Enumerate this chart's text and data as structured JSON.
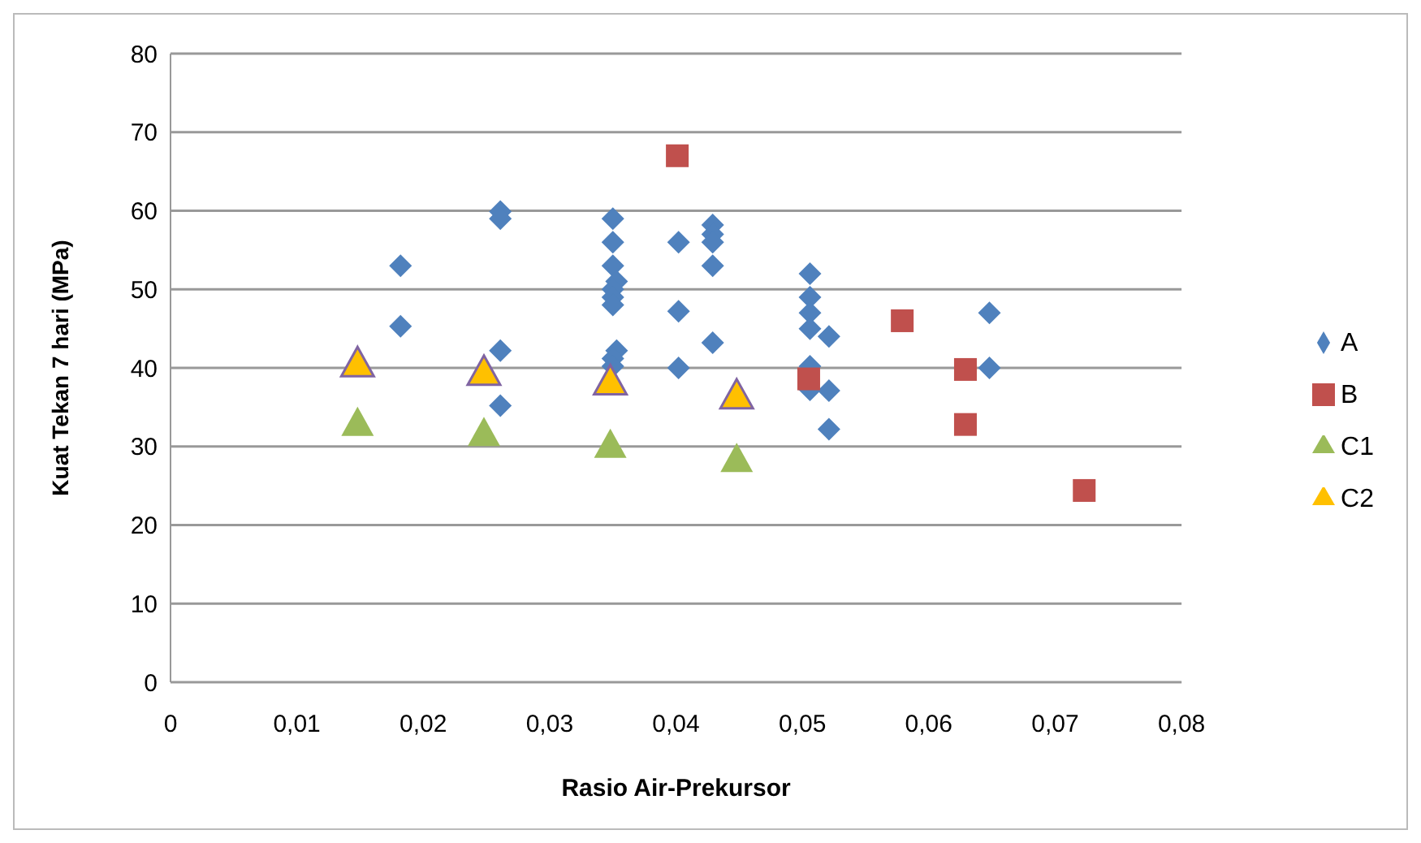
{
  "chart_data": {
    "type": "scatter",
    "xlabel": "Rasio Air-Prekursor",
    "ylabel": "Kuat Tekan 7 hari  (MPa)",
    "xlim": [
      0,
      0.08
    ],
    "xticks": [
      {
        "value": 0,
        "label": "0"
      },
      {
        "value": 0.01,
        "label": "0,01"
      },
      {
        "value": 0.02,
        "label": "0,02"
      },
      {
        "value": 0.03,
        "label": "0,03"
      },
      {
        "value": 0.04,
        "label": "0,04"
      },
      {
        "value": 0.05,
        "label": "0,05"
      },
      {
        "value": 0.06,
        "label": "0,06"
      },
      {
        "value": 0.07,
        "label": "0,07"
      },
      {
        "value": 0.08,
        "label": "0,08"
      }
    ],
    "ylim": [
      0,
      80
    ],
    "yticks": [
      0,
      10,
      20,
      30,
      40,
      50,
      60,
      70,
      80
    ],
    "grid": "y",
    "legend": "right",
    "series": [
      {
        "name": "A",
        "color": "#4f81bd",
        "marker": "diamond",
        "x": [
          0.0182,
          0.0182,
          0.0261,
          0.0261,
          0.0261,
          0.0261,
          0.035,
          0.035,
          0.035,
          0.0353,
          0.035,
          0.035,
          0.035,
          0.0353,
          0.035,
          0.035,
          0.0402,
          0.0402,
          0.0402,
          0.0429,
          0.0429,
          0.0429,
          0.0429,
          0.0429,
          0.0506,
          0.0506,
          0.0506,
          0.0506,
          0.0506,
          0.0506,
          0.0521,
          0.0521,
          0.0521,
          0.0648,
          0.0648
        ],
        "values": [
          53,
          45.3,
          59.9,
          59,
          42.2,
          35.2,
          59,
          56,
          53,
          51,
          50,
          49,
          48,
          42.2,
          41.2,
          40.2,
          56,
          47.2,
          40,
          58.2,
          57,
          56,
          53,
          43.2,
          52,
          49,
          47,
          45,
          40.2,
          37.2,
          44,
          37.1,
          32.2,
          47,
          40
        ]
      },
      {
        "name": "B",
        "color": "#c0504d",
        "marker": "square",
        "x": [
          0.0401,
          0.0505,
          0.0579,
          0.0629,
          0.0629,
          0.0723
        ],
        "values": [
          67,
          38.6,
          46,
          39.8,
          32.8,
          24.4
        ]
      },
      {
        "name": "C1",
        "color": "#9bbb59",
        "marker": "triangle",
        "x": [
          0.0148,
          0.0248,
          0.0348,
          0.0448
        ],
        "values": [
          33,
          31.7,
          30.2,
          28.4
        ]
      },
      {
        "name": "C2",
        "color": "#ffc000",
        "marker": "triangle",
        "x": [
          0.0148,
          0.0248,
          0.0348,
          0.0448
        ],
        "values": [
          40.6,
          39.5,
          38.3,
          36.5
        ]
      }
    ]
  }
}
